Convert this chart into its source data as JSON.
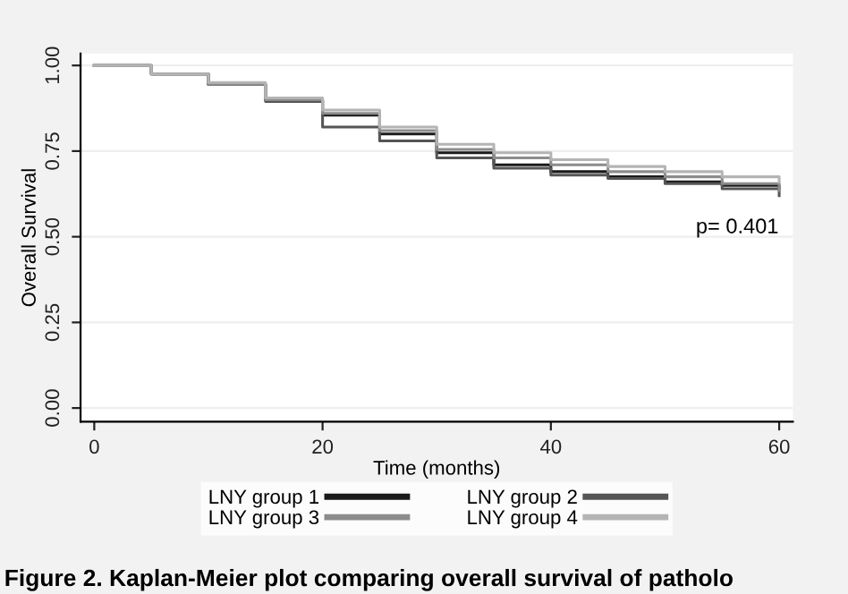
{
  "chart_data": {
    "type": "step",
    "xlabel": "Time (months)",
    "ylabel": "Overall Survival",
    "x": [
      0,
      5,
      10,
      15,
      20,
      25,
      30,
      35,
      40,
      45,
      50,
      55,
      60
    ],
    "series": [
      {
        "name": "LNY group 1",
        "color": "#1a1a1a",
        "values": [
          1,
          0.975,
          0.945,
          0.9,
          0.855,
          0.8,
          0.745,
          0.71,
          0.69,
          0.675,
          0.66,
          0.65,
          0.645
        ]
      },
      {
        "name": "LNY group 2",
        "color": "#555555",
        "values": [
          1,
          0.975,
          0.945,
          0.895,
          0.82,
          0.78,
          0.73,
          0.7,
          0.68,
          0.67,
          0.655,
          0.64,
          0.62
        ]
      },
      {
        "name": "LNY group 3",
        "color": "#8c8c8c",
        "values": [
          1,
          0.975,
          0.945,
          0.9,
          0.86,
          0.81,
          0.755,
          0.73,
          0.71,
          0.69,
          0.675,
          0.655,
          0.635
        ]
      },
      {
        "name": "LNY group 4",
        "color": "#b4b4b4",
        "values": [
          1,
          0.975,
          0.95,
          0.905,
          0.87,
          0.82,
          0.77,
          0.745,
          0.725,
          0.705,
          0.69,
          0.675,
          0.66
        ]
      }
    ],
    "xlim": [
      -1.2,
      61.2
    ],
    "ylim": [
      -0.04,
      1.035
    ],
    "xticks": [
      0,
      20,
      40,
      60
    ],
    "yticks": [
      {
        "value": 0,
        "label": "0.00"
      },
      {
        "value": 0.25,
        "label": "0.25"
      },
      {
        "value": 0.5,
        "label": "0.50"
      },
      {
        "value": 0.75,
        "label": "0.75"
      },
      {
        "value": 1,
        "label": "1.00"
      }
    ],
    "grid": "y",
    "legend": "bottom",
    "line_style": "solid",
    "annotations": [
      "p= 0.401",
      "Figure 2. Kaplan-Meier plot comparing overall survival of patholo"
    ]
  }
}
